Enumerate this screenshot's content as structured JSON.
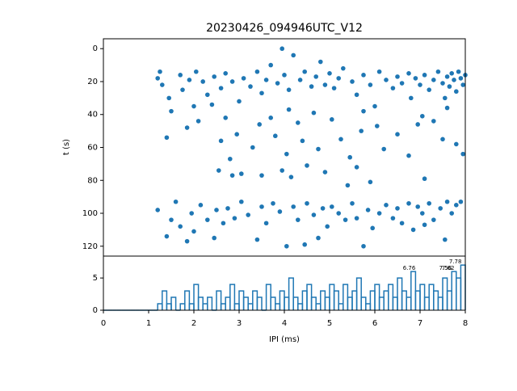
{
  "chart_data": [
    {
      "type": "scatter",
      "title": "20230426_094946UTC_V12",
      "ylabel": "t (s)",
      "color": "#1f77b4",
      "xlim": [
        0,
        8
      ],
      "ylim": [
        126,
        -6
      ],
      "yticks": [
        0,
        20,
        40,
        60,
        80,
        100,
        120
      ],
      "x": [
        1.2,
        1.25,
        1.3,
        1.45,
        1.7,
        1.75,
        1.9,
        2.0,
        2.05,
        2.2,
        2.3,
        2.45,
        2.6,
        2.7,
        2.85,
        3.0,
        3.1,
        3.25,
        3.4,
        3.5,
        3.6,
        3.7,
        3.85,
        3.95,
        4.0,
        4.1,
        4.2,
        4.35,
        4.45,
        4.6,
        4.7,
        4.8,
        4.9,
        5.0,
        5.1,
        5.2,
        5.3,
        5.5,
        5.6,
        5.75,
        5.9,
        6.0,
        6.1,
        6.25,
        6.4,
        6.5,
        6.6,
        6.75,
        6.8,
        6.9,
        7.0,
        7.1,
        7.2,
        7.3,
        7.4,
        7.5,
        7.55,
        7.6,
        7.65,
        7.7,
        7.75,
        7.8,
        7.85,
        7.9,
        7.95,
        8.0,
        1.4,
        1.5,
        1.85,
        2.1,
        2.4,
        2.55,
        2.6,
        2.7,
        2.8,
        2.85,
        2.95,
        3.05,
        3.3,
        3.45,
        3.5,
        3.7,
        3.8,
        3.95,
        4.05,
        4.1,
        4.15,
        4.3,
        4.4,
        4.5,
        4.65,
        4.75,
        4.9,
        5.05,
        5.25,
        5.4,
        5.45,
        5.6,
        5.7,
        5.75,
        5.9,
        6.05,
        6.2,
        6.5,
        6.75,
        6.95,
        7.05,
        7.3,
        7.5,
        7.6,
        7.8,
        7.95,
        7.1,
        1.2,
        1.4,
        1.5,
        1.6,
        1.7,
        1.85,
        1.95,
        2.0,
        2.15,
        2.3,
        2.45,
        2.5,
        2.65,
        2.75,
        2.9,
        3.05,
        3.2,
        3.4,
        3.5,
        3.6,
        3.75,
        3.9,
        4.05,
        4.2,
        4.3,
        4.45,
        4.5,
        4.65,
        4.75,
        4.85,
        4.95,
        5.05,
        5.2,
        5.35,
        5.5,
        5.6,
        5.75,
        5.85,
        5.95,
        6.1,
        6.25,
        6.4,
        6.5,
        6.6,
        6.75,
        6.85,
        6.95,
        7.05,
        7.2,
        7.3,
        7.45,
        7.6,
        7.7,
        7.8,
        7.9,
        7.55,
        7.1
      ],
      "y": [
        18,
        14,
        22,
        30,
        16,
        25,
        19,
        35,
        14,
        20,
        28,
        17,
        24,
        15,
        20,
        32,
        18,
        23,
        14,
        27,
        19,
        10,
        21,
        0,
        16,
        25,
        4,
        19,
        14,
        23,
        17,
        8,
        22,
        15,
        24,
        18,
        12,
        20,
        28,
        16,
        22,
        35,
        14,
        19,
        24,
        17,
        21,
        15,
        30,
        18,
        22,
        16,
        25,
        19,
        14,
        21,
        30,
        17,
        23,
        15,
        19,
        26,
        14,
        18,
        22,
        16,
        54,
        38,
        48,
        44,
        34,
        74,
        56,
        42,
        67,
        77,
        52,
        76,
        60,
        46,
        77,
        42,
        53,
        74,
        64,
        37,
        78,
        45,
        56,
        71,
        39,
        61,
        75,
        43,
        55,
        83,
        66,
        72,
        50,
        38,
        81,
        47,
        61,
        52,
        65,
        46,
        41,
        44,
        55,
        36,
        58,
        64,
        79,
        98,
        114,
        104,
        93,
        108,
        117,
        100,
        111,
        95,
        104,
        115,
        98,
        106,
        97,
        103,
        93,
        101,
        116,
        96,
        106,
        94,
        99,
        120,
        96,
        104,
        119,
        94,
        101,
        115,
        97,
        108,
        96,
        100,
        104,
        94,
        103,
        120,
        98,
        109,
        100,
        95,
        103,
        97,
        106,
        94,
        110,
        96,
        100,
        94,
        104,
        97,
        93,
        100,
        95,
        93,
        116,
        107
      ]
    },
    {
      "type": "histogram",
      "xlabel": "IPI (ms)",
      "color": "#1f77b4",
      "xlim": [
        0,
        8
      ],
      "xticks": [
        0,
        1,
        2,
        3,
        4,
        5,
        6,
        7,
        8
      ],
      "ylim": [
        0,
        8.4
      ],
      "yticks": [
        0,
        5
      ],
      "bins": [
        0,
        0.1,
        0.2,
        0.3,
        0.4,
        0.5,
        0.6,
        0.7,
        0.8,
        0.9,
        1.0,
        1.1,
        1.2,
        1.3,
        1.4,
        1.5,
        1.6,
        1.7,
        1.8,
        1.9,
        2.0,
        2.1,
        2.2,
        2.3,
        2.4,
        2.5,
        2.6,
        2.7,
        2.8,
        2.9,
        3.0,
        3.1,
        3.2,
        3.3,
        3.4,
        3.5,
        3.6,
        3.7,
        3.8,
        3.9,
        4.0,
        4.1,
        4.2,
        4.3,
        4.4,
        4.5,
        4.6,
        4.7,
        4.8,
        4.9,
        5.0,
        5.1,
        5.2,
        5.3,
        5.4,
        5.5,
        5.6,
        5.7,
        5.8,
        5.9,
        6.0,
        6.1,
        6.2,
        6.3,
        6.4,
        6.5,
        6.6,
        6.7,
        6.8,
        6.9,
        7.0,
        7.1,
        7.2,
        7.3,
        7.4,
        7.5,
        7.6,
        7.7,
        7.8,
        7.9,
        8.0
      ],
      "counts": [
        0,
        0,
        0,
        0,
        0,
        0,
        0,
        0,
        0,
        0,
        0,
        0,
        1,
        3,
        1,
        2,
        0,
        1,
        3,
        1,
        4,
        2,
        1,
        2,
        0,
        3,
        1,
        2,
        4,
        1,
        3,
        2,
        1,
        3,
        2,
        0,
        4,
        2,
        1,
        3,
        2,
        5,
        2,
        1,
        3,
        4,
        2,
        1,
        3,
        2,
        4,
        3,
        1,
        4,
        2,
        3,
        5,
        2,
        1,
        3,
        4,
        2,
        3,
        4,
        2,
        5,
        3,
        2,
        6,
        3,
        4,
        2,
        4,
        3,
        2,
        5,
        3,
        6,
        5,
        7
      ],
      "annotations": [
        {
          "x": 6.76,
          "y": 6
        },
        {
          "x": 7.56,
          "y": 6
        },
        {
          "x": 7.62,
          "y": 6
        },
        {
          "x": 7.78,
          "y": 7
        }
      ]
    }
  ]
}
